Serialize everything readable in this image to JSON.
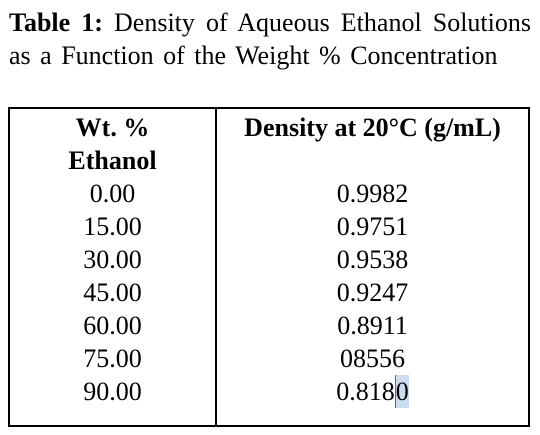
{
  "caption": {
    "label": "Table 1:",
    "text": "Density of Aqueous Ethanol Solutions as a Function of the Weight % Concentration"
  },
  "table": {
    "header_left_line1": "Wt. %",
    "header_left_line2": "Ethanol",
    "header_right": "Density at 20°C (g/mL)",
    "rows": [
      {
        "wt": "0.00",
        "density": "0.9982"
      },
      {
        "wt": "15.00",
        "density": "0.9751"
      },
      {
        "wt": "30.00",
        "density": "0.9538"
      },
      {
        "wt": "45.00",
        "density": "0.9247"
      },
      {
        "wt": "60.00",
        "density": "0.8911"
      },
      {
        "wt": "75.00",
        "density": "08556"
      },
      {
        "wt": "90.00",
        "density_main": "0.818",
        "density_selected": "0"
      }
    ]
  }
}
